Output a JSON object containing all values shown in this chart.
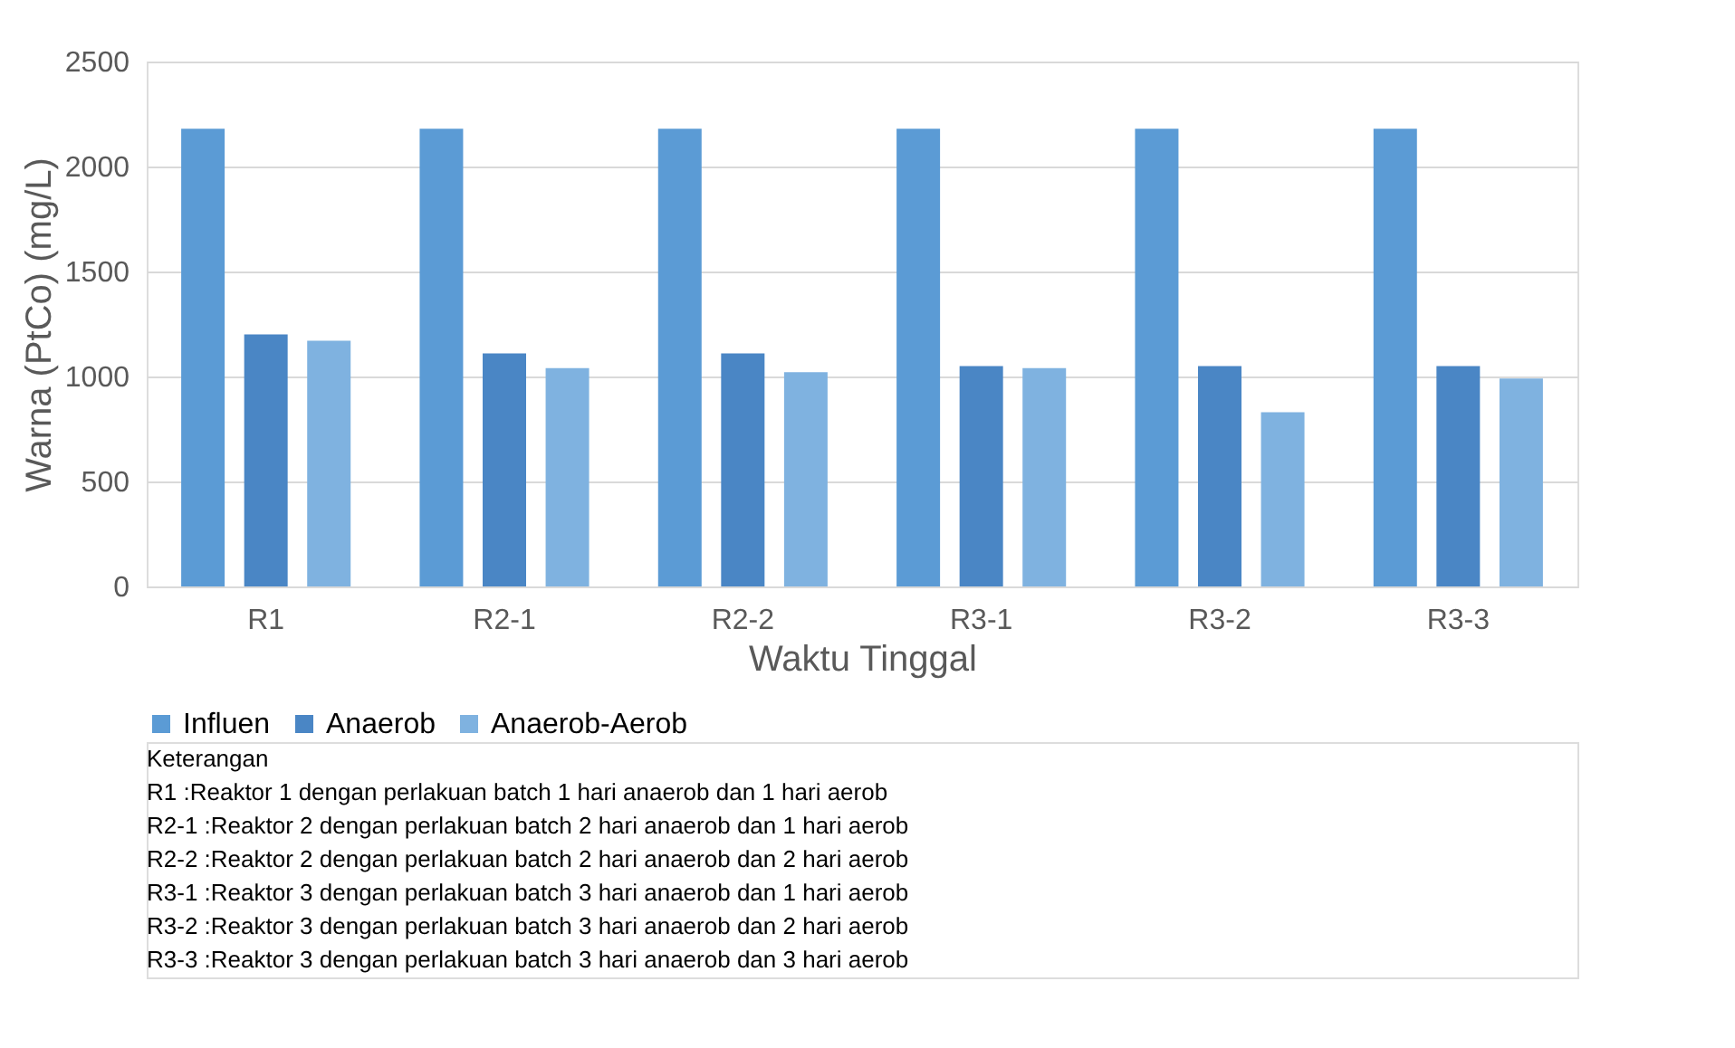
{
  "chart_data": {
    "type": "bar",
    "xlabel": "Waktu Tinggal",
    "ylabel": "Warna (PtCo) (mg/L)",
    "categories": [
      "R1",
      "R2-1",
      "R2-2",
      "R3-1",
      "R3-2",
      "R3-3"
    ],
    "series": [
      {
        "name": "Influen",
        "color": "#5b9bd5",
        "values": [
          2180,
          2180,
          2180,
          2180,
          2180,
          2180
        ]
      },
      {
        "name": "Anaerob",
        "color": "#4a86c5",
        "values": [
          1200,
          1110,
          1110,
          1050,
          1050,
          1050
        ]
      },
      {
        "name": "Anaerob-Aerob",
        "color": "#7fb2e0",
        "values": [
          1170,
          1040,
          1020,
          1040,
          830,
          990
        ]
      }
    ],
    "ylim": [
      0,
      2500
    ],
    "yticks": [
      0,
      500,
      1000,
      1500,
      2000,
      2500
    ],
    "grid": "y",
    "legend": "bottom",
    "annotations": [
      "Keterangan",
      "R1     :Reaktor 1 dengan perlakuan batch 1 hari anaerob dan 1 hari aerob",
      "R2-1  :Reaktor 2 dengan perlakuan batch 2 hari anaerob dan 1 hari aerob",
      "R2-2  :Reaktor 2 dengan perlakuan batch 2 hari anaerob dan 2 hari aerob",
      "R3-1  :Reaktor 3 dengan perlakuan batch 3 hari anaerob dan 1 hari aerob",
      "R3-2  :Reaktor 3 dengan perlakuan batch 3 hari anaerob dan 2 hari aerob",
      "R3-3  :Reaktor 3 dengan perlakuan batch 3 hari anaerob dan 3 hari aerob"
    ]
  }
}
